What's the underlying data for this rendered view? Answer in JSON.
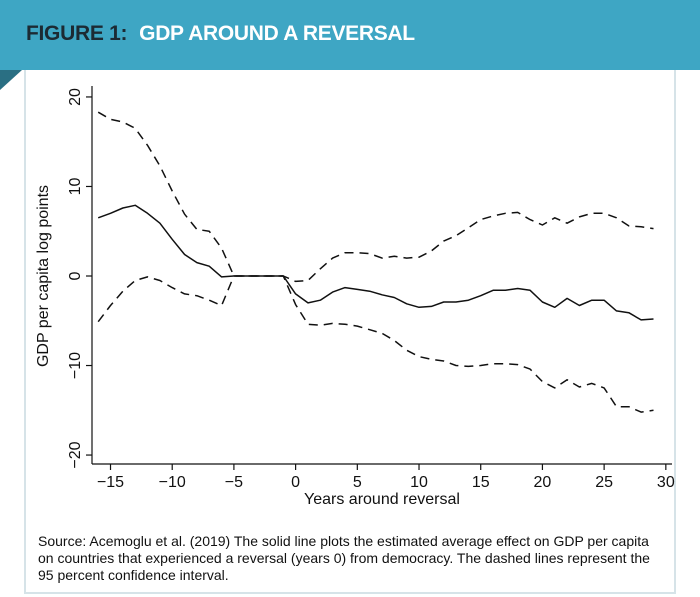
{
  "header": {
    "figure_label": "FIGURE 1:",
    "title": "GDP AROUND A REVERSAL",
    "banner_color": "#3ea6c4",
    "fold_color": "#2a6f83"
  },
  "caption": "Source: Acemoglu et al. (2019) The solid line plots the estimated average effect on GDP per capita on countries that experienced a reversal (years 0) from democracy. The dashed lines represent the 95 percent confidence interval.",
  "chart_data": {
    "type": "line",
    "title": "GDP AROUND A REVERSAL",
    "xlabel": "Years around reversal",
    "ylabel": "GDP per capita log points",
    "xlim": [
      -16.5,
      30.5
    ],
    "ylim": [
      -21,
      21
    ],
    "xticks": [
      -15,
      -10,
      -5,
      0,
      5,
      10,
      15,
      20,
      25,
      30
    ],
    "xtick_labels": [
      "−15",
      "−10",
      "−5",
      "0",
      "5",
      "10",
      "15",
      "20",
      "25",
      "30"
    ],
    "yticks": [
      -20,
      -10,
      0,
      10,
      20
    ],
    "ytick_labels": [
      "−20",
      "−10",
      "0",
      "10",
      "20"
    ],
    "grid": false,
    "x": [
      -16,
      -15,
      -14,
      -13,
      -12,
      -11,
      -10,
      -9,
      -8,
      -7,
      -6,
      -5,
      -4,
      -3,
      -2,
      -1,
      0,
      1,
      2,
      3,
      4,
      5,
      6,
      7,
      8,
      9,
      10,
      11,
      12,
      13,
      14,
      15,
      16,
      17,
      18,
      19,
      20,
      21,
      22,
      23,
      24,
      25,
      26,
      27,
      28,
      29
    ],
    "series": [
      {
        "name": "Estimated average effect",
        "style": "solid",
        "values": [
          6.5,
          7.0,
          7.6,
          7.9,
          7.0,
          5.9,
          4.1,
          2.4,
          1.5,
          1.1,
          -0.1,
          0,
          0,
          0,
          0,
          0,
          -2.0,
          -3.0,
          -2.7,
          -1.8,
          -1.3,
          -1.5,
          -1.7,
          -2.1,
          -2.4,
          -3.1,
          -3.5,
          -3.4,
          -2.9,
          -2.9,
          -2.7,
          -2.2,
          -1.6,
          -1.6,
          -1.4,
          -1.6,
          -2.9,
          -3.5,
          -2.5,
          -3.3,
          -2.7,
          -2.7,
          -3.9,
          -4.1,
          -4.9,
          -4.8
        ]
      },
      {
        "name": "95% CI upper",
        "style": "dashed",
        "values": [
          18.3,
          17.5,
          17.2,
          16.5,
          14.6,
          12.3,
          9.5,
          6.9,
          5.2,
          5.0,
          3.1,
          0,
          0,
          0,
          0,
          0,
          -0.6,
          -0.5,
          0.8,
          2.0,
          2.6,
          2.6,
          2.5,
          2.0,
          2.2,
          2.0,
          2.1,
          2.8,
          3.9,
          4.5,
          5.4,
          6.3,
          6.7,
          7.0,
          7.1,
          6.3,
          5.7,
          6.5,
          5.9,
          6.6,
          7.0,
          7.0,
          6.5,
          5.6,
          5.5,
          5.3
        ]
      },
      {
        "name": "95% CI lower",
        "style": "dashed",
        "values": [
          -5.1,
          -3.3,
          -1.7,
          -0.5,
          -0.1,
          -0.5,
          -1.3,
          -2.0,
          -2.2,
          -2.7,
          -3.3,
          0,
          0,
          0,
          0,
          0,
          -3.2,
          -5.4,
          -5.5,
          -5.3,
          -5.4,
          -5.6,
          -6.0,
          -6.4,
          -7.2,
          -8.3,
          -9.0,
          -9.3,
          -9.5,
          -10.0,
          -10.1,
          -10.0,
          -9.8,
          -9.8,
          -9.9,
          -10.4,
          -11.8,
          -12.5,
          -11.6,
          -12.4,
          -12.0,
          -12.5,
          -14.6,
          -14.6,
          -15.2,
          -15.0
        ]
      }
    ]
  }
}
